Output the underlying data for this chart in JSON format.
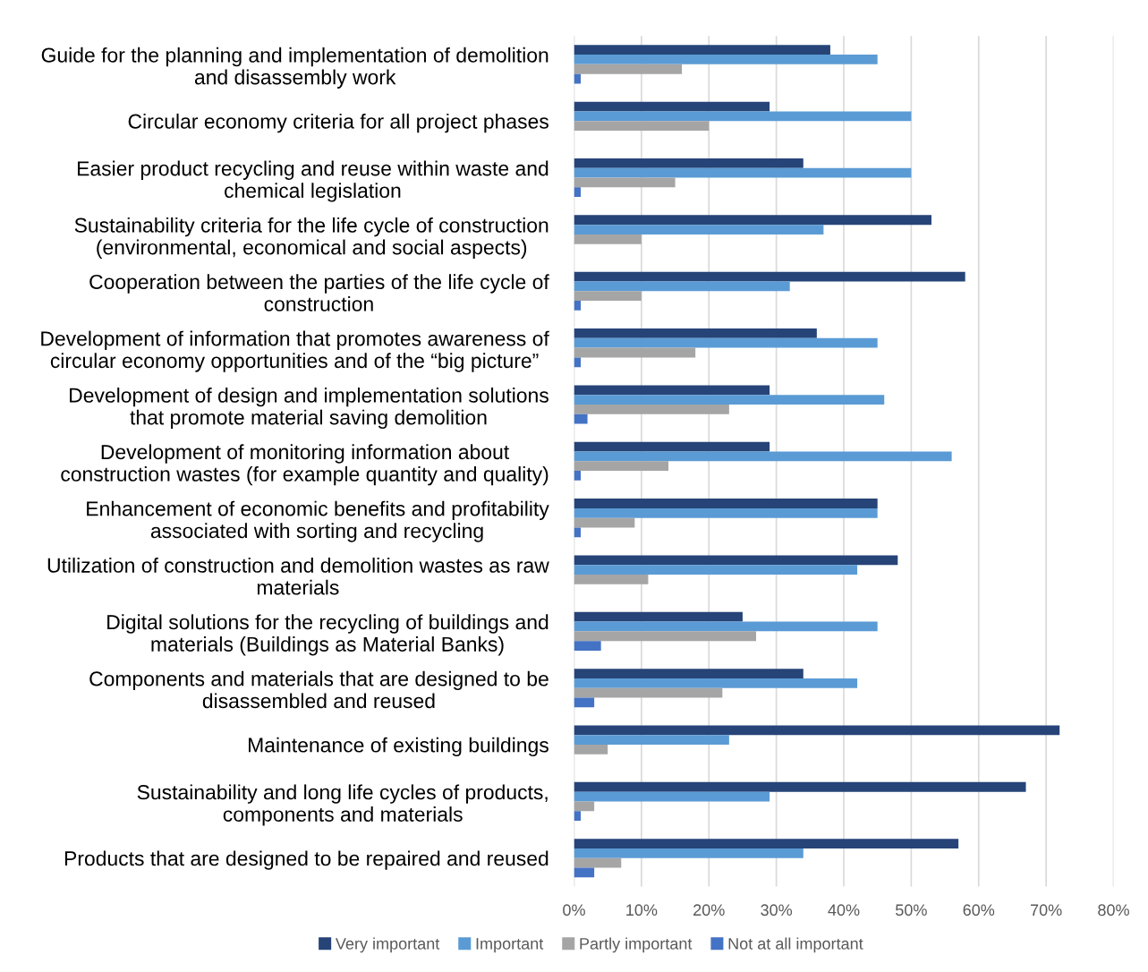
{
  "chart_data": {
    "type": "bar",
    "orientation": "horizontal",
    "categories": [
      "Guide for the planning and implementation of demolition\nand disassembly work",
      "Circular economy criteria for all project phases",
      "Easier product recycling and reuse within waste and\nchemical legislation",
      "Sustainability criteria for the life cycle of construction\n(environmental, economical and social aspects)",
      "Cooperation between the parties of the life cycle of\nconstruction",
      "Development of information that promotes awareness of\ncircular economy opportunities and of the “big picture”",
      "Development of design and implementation solutions\nthat promote material saving demolition",
      "Development of monitoring information about\nconstruction wastes (for example quantity and quality)",
      "Enhancement of economic benefits and profitability\nassociated with sorting and recycling",
      "Utilization of construction and demolition wastes as raw\nmaterials",
      "Digital solutions for the recycling of buildings and\nmaterials (Buildings as Material Banks)",
      "Components and materials that are designed to be\ndisassembled and reused",
      "Maintenance of existing buildings",
      "Sustainability and long life cycles of products,\ncomponents and materials",
      "Products that are designed to be repaired and reused"
    ],
    "series": [
      {
        "name": "Very important",
        "color": "#264478",
        "values": [
          38,
          29,
          34,
          53,
          58,
          36,
          29,
          29,
          45,
          48,
          25,
          34,
          72,
          67,
          57
        ]
      },
      {
        "name": "Important",
        "color": "#5b9bd5",
        "values": [
          45,
          50,
          50,
          37,
          32,
          45,
          46,
          56,
          45,
          42,
          45,
          42,
          23,
          29,
          34
        ]
      },
      {
        "name": "Partly important",
        "color": "#a5a5a5",
        "values": [
          16,
          20,
          15,
          10,
          10,
          18,
          23,
          14,
          9,
          11,
          27,
          22,
          5,
          3,
          7
        ]
      },
      {
        "name": "Not at all important",
        "color": "#4472c4",
        "values": [
          1,
          0,
          1,
          0,
          1,
          1,
          2,
          1,
          1,
          0,
          4,
          3,
          0,
          1,
          3
        ]
      }
    ],
    "xlim": [
      0,
      80
    ],
    "xticks": [
      {
        "value": 0,
        "label": "0%"
      },
      {
        "value": 10,
        "label": "10%"
      },
      {
        "value": 20,
        "label": "20%"
      },
      {
        "value": 30,
        "label": "30%"
      },
      {
        "value": 40,
        "label": "40%"
      },
      {
        "value": 50,
        "label": "50%"
      },
      {
        "value": 60,
        "label": "60%"
      },
      {
        "value": 70,
        "label": "70%"
      },
      {
        "value": 80,
        "label": "80%"
      }
    ],
    "grid": "x",
    "legend": "bottom"
  }
}
